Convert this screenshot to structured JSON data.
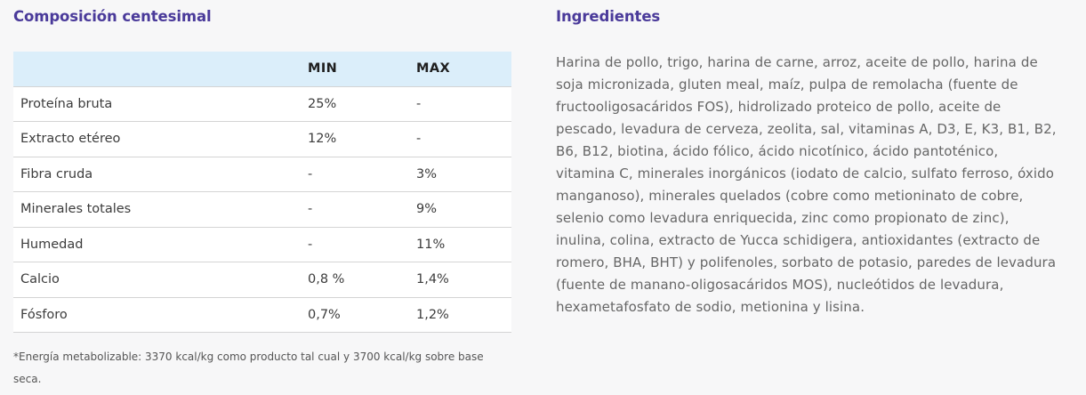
{
  "composition": {
    "title": "Composición centesimal",
    "headers": [
      "",
      "MIN",
      "MAX"
    ],
    "rows": [
      {
        "name": "Proteína bruta",
        "min": "25%",
        "max": "-"
      },
      {
        "name": "Extracto etéreo",
        "min": "12%",
        "max": "-"
      },
      {
        "name": "Fibra cruda",
        "min": "-",
        "max": "3%"
      },
      {
        "name": "Minerales totales",
        "min": "-",
        "max": "9%"
      },
      {
        "name": "Humedad",
        "min": "-",
        "max": "11%"
      },
      {
        "name": "Calcio",
        "min": "0,8 %",
        "max": "1,4%"
      },
      {
        "name": "Fósforo",
        "min": "0,7%",
        "max": "1,2%"
      }
    ],
    "note": "*Energía metabolizable: 3370 kcal/kg como producto tal cual y 3700 kcal/kg sobre base seca."
  },
  "ingredients": {
    "title": "Ingredientes",
    "text": "Harina de pollo, trigo, harina de carne, arroz, aceite de pollo, harina de soja micronizada, gluten meal, maíz, pulpa de remolacha (fuente de fructooligosacáridos FOS), hidrolizado proteico de pollo, aceite de pescado, levadura de cerveza, zeolita, sal, vitaminas A, D3, E, K3, B1, B2, B6, B12, biotina, ácido fólico, ácido nicotínico, ácido pantoténico, vitamina C, minerales inorgánicos (iodato de calcio, sulfato ferroso, óxido manganoso), minerales quelados (cobre como metioninato de cobre, selenio como levadura enriquecida, zinc como propionato de zinc), inulina, colina, extracto de Yucca schidigera, antioxidantes (extracto de romero, BHA, BHT) y polifenoles, sorbato de potasio, paredes de levadura (fuente de manano-oligosacáridos MOS), nucleótidos de levadura, hexametafosfato de sodio, metionina y lisina."
  },
  "colors": {
    "heading": "#4a3a9a",
    "table_header_bg": "#dbeefa",
    "page_bg": "#f7f7f8"
  }
}
